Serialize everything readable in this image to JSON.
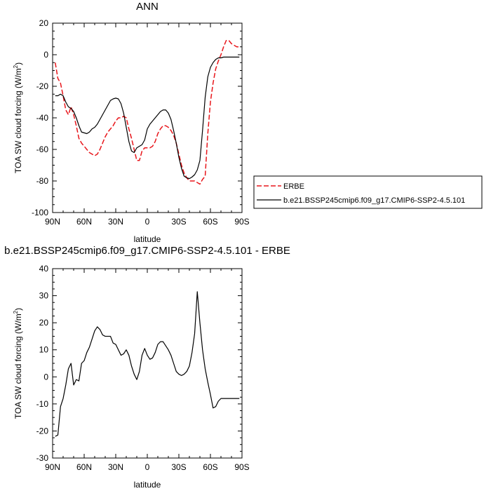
{
  "chart_data": [
    {
      "type": "line",
      "title": "ANN",
      "xlabel": "latitude",
      "ylabel_main": "TOA SW cloud forcing (W/m",
      "ylabel_sup": "2",
      "ylabel_end": ")",
      "xlim": [
        90,
        -90
      ],
      "ylim": [
        -100,
        20
      ],
      "xticks": [
        90,
        60,
        30,
        0,
        -30,
        -60,
        -90
      ],
      "xtick_labels": [
        "90N",
        "60N",
        "30N",
        "0",
        "30S",
        "60S",
        "90S"
      ],
      "yticks": [
        -100,
        -80,
        -60,
        -40,
        -20,
        0,
        20
      ],
      "ytick_labels": [
        "-100",
        "-80",
        "-60",
        "-40",
        "-20",
        "0",
        "20"
      ],
      "legend_position": "right",
      "series": [
        {
          "name": "ERBE",
          "color": "#e8161b",
          "dash": "dashed",
          "x": [
            87.5,
            85,
            82.5,
            80,
            77.5,
            75,
            72.5,
            70,
            67.5,
            65,
            62.5,
            60,
            57.5,
            55,
            52.5,
            50,
            47.5,
            45,
            42.5,
            40,
            37.5,
            35,
            32.5,
            30,
            27.5,
            25,
            22.5,
            20,
            17.5,
            15,
            12.5,
            10,
            7.5,
            5,
            2.5,
            0,
            -2.5,
            -5,
            -7.5,
            -10,
            -12.5,
            -15,
            -17.5,
            -20,
            -22.5,
            -25,
            -27.5,
            -30,
            -32.5,
            -35,
            -37.5,
            -40,
            -42.5,
            -45,
            -47.5,
            -50,
            -52.5,
            -55,
            -57.5,
            -60,
            -62.5,
            -65,
            -67.5,
            -70,
            -72.5,
            -75,
            -77.5,
            -80,
            -82.5,
            -85,
            -87.5
          ],
          "y": [
            -5,
            -15,
            -18,
            -26,
            -35,
            -38,
            -33,
            -38,
            -45,
            -53,
            -56,
            -58,
            -60,
            -62,
            -63,
            -64,
            -63,
            -60,
            -56,
            -52,
            -49,
            -47,
            -45,
            -42,
            -40,
            -40,
            -39,
            -40,
            -47,
            -53,
            -60,
            -67,
            -67,
            -61,
            -59,
            -59,
            -59,
            -58,
            -55,
            -50,
            -47,
            -45,
            -45,
            -46,
            -48,
            -51,
            -56,
            -63,
            -70,
            -75,
            -78,
            -80,
            -80,
            -80,
            -81,
            -82,
            -79,
            -77,
            -50,
            -30,
            -18,
            -9,
            -4,
            0,
            5,
            9,
            9,
            7,
            6,
            5,
            5
          ]
        },
        {
          "name": "b.e21.BSSP245cmip6.f09_g17.CMIP6-SSP2-4.5.101",
          "color": "#000000",
          "dash": "solid",
          "x": [
            87.5,
            85,
            82.5,
            80,
            77.5,
            75,
            72.5,
            70,
            67.5,
            65,
            62.5,
            60,
            57.5,
            55,
            52.5,
            50,
            47.5,
            45,
            42.5,
            40,
            37.5,
            35,
            32.5,
            30,
            27.5,
            25,
            22.5,
            20,
            17.5,
            15,
            12.5,
            10,
            7.5,
            5,
            2.5,
            0,
            -2.5,
            -5,
            -7.5,
            -10,
            -12.5,
            -15,
            -17.5,
            -20,
            -22.5,
            -25,
            -27.5,
            -30,
            -32.5,
            -35,
            -37.5,
            -40,
            -42.5,
            -45,
            -47.5,
            -50,
            -52.5,
            -55,
            -57.5,
            -60,
            -62.5,
            -65,
            -67.5,
            -70,
            -72.5,
            -75,
            -77.5,
            -80,
            -82.5,
            -85,
            -87.5
          ],
          "y": [
            -26,
            -26,
            -25,
            -26,
            -30,
            -33,
            -34,
            -36,
            -40,
            -45,
            -49,
            -49.5,
            -50,
            -49,
            -47,
            -46,
            -44,
            -41,
            -38,
            -35,
            -32,
            -29,
            -28,
            -27.5,
            -28,
            -31,
            -37,
            -46,
            -55,
            -61,
            -62,
            -59,
            -58,
            -57,
            -54,
            -47,
            -44,
            -42,
            -40,
            -38,
            -36,
            -35,
            -35,
            -37,
            -41,
            -48,
            -56,
            -65,
            -72,
            -77,
            -78,
            -78.5,
            -77.5,
            -76,
            -73,
            -67,
            -48,
            -27,
            -14,
            -8,
            -5,
            -3,
            -2,
            -2,
            -1.5,
            -1.5,
            -1.5,
            -1.5,
            -1.5,
            -1.5,
            -1.5
          ]
        }
      ]
    },
    {
      "type": "line",
      "title": "b.e21.BSSP245cmip6.f09_g17.CMIP6-SSP2-4.5.101 - ERBE",
      "xlabel": "latitude",
      "ylabel_main": "TOA SW cloud forcing (W/m",
      "ylabel_sup": "2",
      "ylabel_end": ")",
      "xlim": [
        90,
        -90
      ],
      "ylim": [
        -30,
        40
      ],
      "xticks": [
        90,
        60,
        30,
        0,
        -30,
        -60,
        -90
      ],
      "xtick_labels": [
        "90N",
        "60N",
        "30N",
        "0",
        "30S",
        "60S",
        "90S"
      ],
      "yticks": [
        -30,
        -20,
        -10,
        0,
        10,
        20,
        30,
        40
      ],
      "ytick_labels": [
        "-30",
        "-20",
        "-10",
        "0",
        "10",
        "20",
        "30",
        "40"
      ],
      "series": [
        {
          "color": "#000000",
          "dash": "solid",
          "x": [
            87.5,
            85,
            82.5,
            80,
            77.5,
            75,
            72.5,
            70,
            67.5,
            65,
            62.5,
            60,
            57.5,
            55,
            52.5,
            50,
            47.5,
            45,
            42.5,
            40,
            37.5,
            35,
            32.5,
            30,
            27.5,
            25,
            22.5,
            20,
            17.5,
            15,
            12.5,
            10,
            7.5,
            5,
            2.5,
            0,
            -2.5,
            -5,
            -7.5,
            -10,
            -12.5,
            -15,
            -17.5,
            -20,
            -22.5,
            -25,
            -27.5,
            -30,
            -32.5,
            -35,
            -37.5,
            -40,
            -42.5,
            -45,
            -47.5,
            -50,
            -52.5,
            -55,
            -57.5,
            -60,
            -62.5,
            -65,
            -67.5,
            -70,
            -72.5,
            -75,
            -77.5,
            -80,
            -82.5,
            -85,
            -87.5
          ],
          "y": [
            -22,
            -21.5,
            -11,
            -8,
            -3,
            3,
            5,
            -3,
            -1,
            -1.5,
            5,
            6,
            9,
            11,
            14,
            17,
            18.5,
            17.5,
            15.5,
            15,
            15,
            15,
            12.5,
            12,
            10,
            8,
            8.5,
            10,
            8,
            4,
            1,
            -1,
            2,
            8,
            10.5,
            8,
            6.5,
            7,
            9,
            12,
            13,
            13,
            11.5,
            10,
            8,
            5,
            2,
            1,
            0.5,
            1,
            2,
            4,
            9,
            16,
            31.5,
            20,
            10,
            3,
            -2,
            -6.5,
            -11.5,
            -11,
            -9,
            -8,
            -8,
            -8,
            -8,
            -8,
            -8,
            -8,
            -8
          ]
        }
      ]
    }
  ]
}
